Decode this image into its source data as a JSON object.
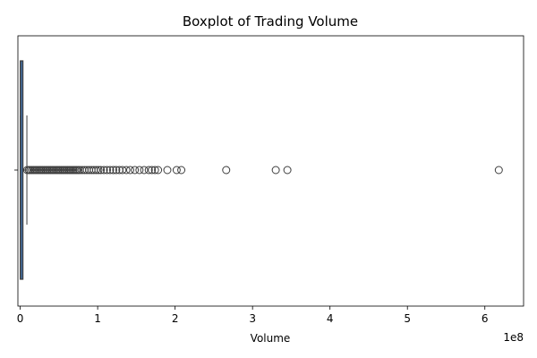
{
  "chart_data": {
    "type": "boxplot",
    "title": "Boxplot of Trading Volume",
    "xlabel": "Volume",
    "ylabel": "",
    "x_offset_label": "1e8",
    "x_scale": 100000000,
    "xlim": [
      -3000000,
      650000000
    ],
    "xticks": [
      0,
      100000000,
      200000000,
      300000000,
      400000000,
      500000000,
      600000000
    ],
    "xtick_labels": [
      "0",
      "1",
      "2",
      "3",
      "4",
      "5",
      "6"
    ],
    "orientation": "horizontal",
    "grid": false,
    "box": {
      "q1": 100000,
      "median": 400000,
      "q3": 3500000,
      "whisker_low": 0,
      "whisker_high": 8600000
    },
    "fliers": [
      9000000,
      11000000,
      13000000,
      15000000,
      17000000,
      19000000,
      21000000,
      23000000,
      25000000,
      27000000,
      29000000,
      31000000,
      33000000,
      35000000,
      37000000,
      39000000,
      41000000,
      43000000,
      45000000,
      47000000,
      49000000,
      51000000,
      53000000,
      55000000,
      57000000,
      59000000,
      61000000,
      63000000,
      65000000,
      67000000,
      69000000,
      71000000,
      73000000,
      75000000,
      77000000,
      80000000,
      83000000,
      86000000,
      89000000,
      92000000,
      95000000,
      98000000,
      101000000,
      104000000,
      108000000,
      112000000,
      116000000,
      120000000,
      124000000,
      128000000,
      132000000,
      137000000,
      142000000,
      148000000,
      154000000,
      160000000,
      166000000,
      170000000,
      174000000,
      178000000,
      190000000,
      202000000,
      208000000,
      266000000,
      330000000,
      345000000,
      618000000
    ],
    "colors": {
      "box_fill": "#4472a8",
      "line": "#3d3d3d"
    }
  }
}
